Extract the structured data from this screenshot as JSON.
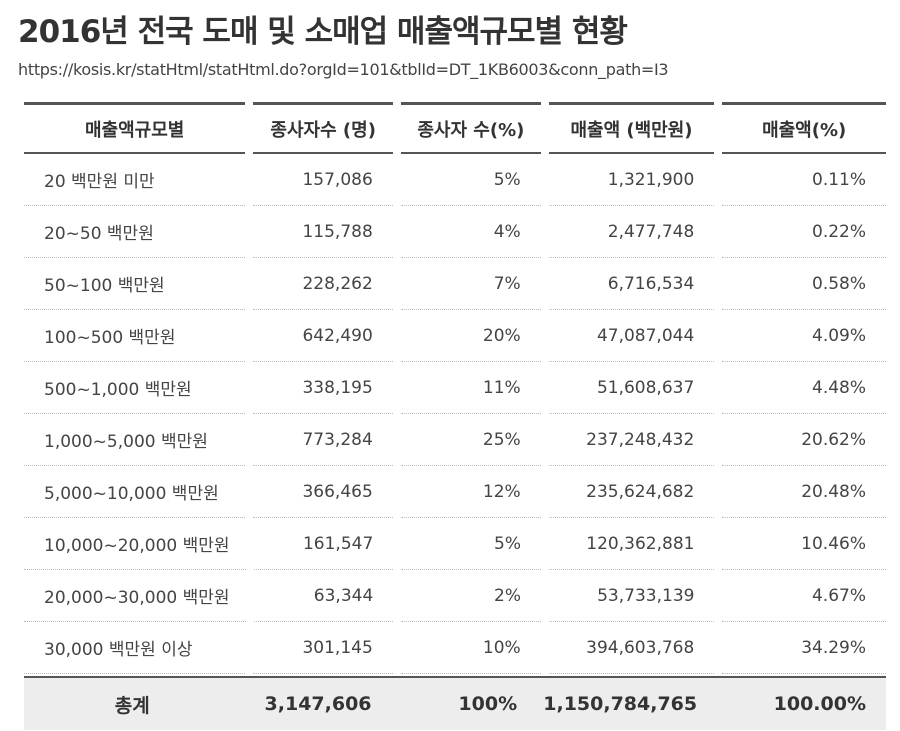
{
  "title": "2016년 전국 도매 및 소매업 매출액규모별 현황",
  "source_url": "https://kosis.kr/statHtml/statHtml.do?orgId=101&tblId=DT_1KB6003&conn_path=I3",
  "columns": [
    "매출액규모별",
    "종사자수 (명)",
    "종사자 수(%)",
    "매출액 (백만원)",
    "매출액(%)"
  ],
  "rows": [
    [
      "20 백만원 미만",
      "157,086",
      "5%",
      "1,321,900",
      "0.11%"
    ],
    [
      "20~50 백만원",
      "115,788",
      "4%",
      "2,477,748",
      "0.22%"
    ],
    [
      "50~100 백만원",
      "228,262",
      "7%",
      "6,716,534",
      "0.58%"
    ],
    [
      "100~500 백만원",
      "642,490",
      "20%",
      "47,087,044",
      "4.09%"
    ],
    [
      "500~1,000 백만원",
      "338,195",
      "11%",
      "51,608,637",
      "4.48%"
    ],
    [
      "1,000~5,000 백만원",
      "773,284",
      "25%",
      "237,248,432",
      "20.62%"
    ],
    [
      "5,000~10,000 백만원",
      "366,465",
      "12%",
      "235,624,682",
      "20.48%"
    ],
    [
      "10,000~20,000 백만원",
      "161,547",
      "5%",
      "120,362,881",
      "10.46%"
    ],
    [
      "20,000~30,000 백만원",
      "63,344",
      "2%",
      "53,733,139",
      "4.67%"
    ],
    [
      "30,000 백만원 이상",
      "301,145",
      "10%",
      "394,603,768",
      "34.29%"
    ]
  ],
  "total": [
    "총계",
    "3,147,606",
    "100%",
    "1,150,784,765",
    "100.00%"
  ]
}
